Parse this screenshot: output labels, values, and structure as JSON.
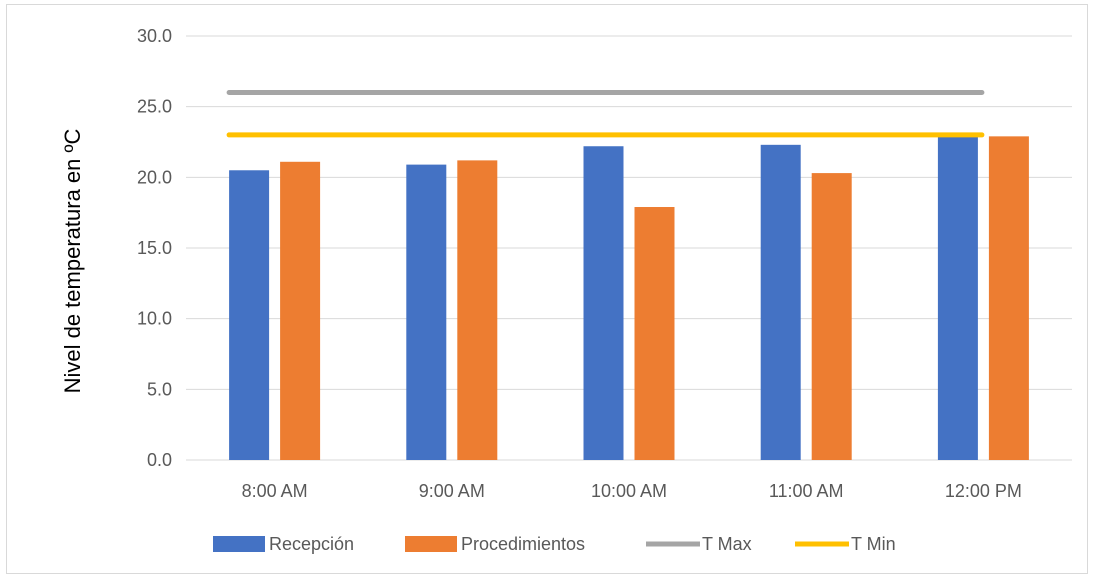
{
  "chart_data": {
    "type": "bar",
    "title": "",
    "xlabel": "",
    "ylabel": "Nivel de temperatura en ºC",
    "ylim": [
      0,
      30
    ],
    "yticks": [
      "0.0",
      "5.0",
      "10.0",
      "15.0",
      "20.0",
      "25.0",
      "30.0"
    ],
    "categories": [
      "8:00 AM",
      "9:00 AM",
      "10:00 AM",
      "11:00 AM",
      "12:00 PM"
    ],
    "series": [
      {
        "name": "Recepción",
        "kind": "bar",
        "color": "#4472C4",
        "values": [
          20.5,
          20.9,
          22.2,
          22.3,
          23.0
        ]
      },
      {
        "name": "Procedimientos",
        "kind": "bar",
        "color": "#ED7D31",
        "values": [
          21.1,
          21.2,
          17.9,
          20.3,
          22.9
        ]
      },
      {
        "name": "T Max",
        "kind": "line",
        "color": "#A5A5A5",
        "values": [
          26,
          26,
          26,
          26,
          26
        ]
      },
      {
        "name": "T Min",
        "kind": "line",
        "color": "#FFC000",
        "values": [
          23,
          23,
          23,
          23,
          23
        ]
      }
    ],
    "grid": true,
    "legend": "bottom"
  }
}
